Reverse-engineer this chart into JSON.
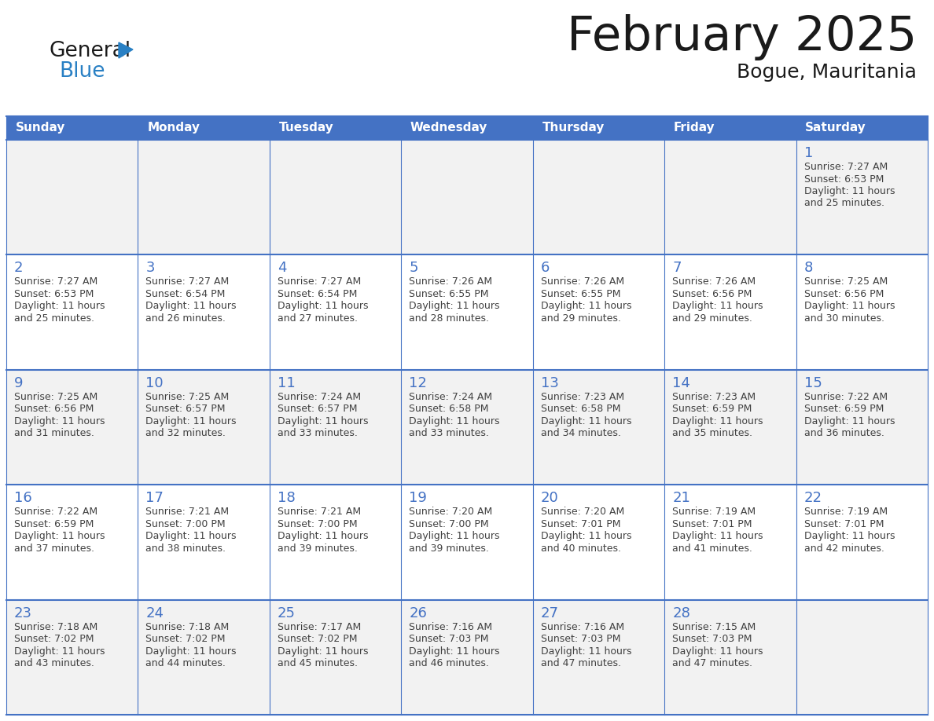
{
  "title": "February 2025",
  "subtitle": "Bogue, Mauritania",
  "days_of_week": [
    "Sunday",
    "Monday",
    "Tuesday",
    "Wednesday",
    "Thursday",
    "Friday",
    "Saturday"
  ],
  "header_bg": "#4472C4",
  "header_text": "#FFFFFF",
  "cell_bg_even": "#F2F2F2",
  "cell_bg_odd": "#FFFFFF",
  "grid_line_color": "#4472C4",
  "day_number_color": "#4472C4",
  "cell_text_color": "#404040",
  "title_color": "#1a1a1a",
  "logo_general_color": "#1a1a1a",
  "logo_blue_color": "#2980C4",
  "logo_triangle_color": "#2980C4",
  "calendar": [
    [
      null,
      null,
      null,
      null,
      null,
      null,
      {
        "day": 1,
        "sunrise": "7:27 AM",
        "sunset": "6:53 PM",
        "daylight": "11 hours and 25 minutes."
      }
    ],
    [
      {
        "day": 2,
        "sunrise": "7:27 AM",
        "sunset": "6:53 PM",
        "daylight": "11 hours and 25 minutes."
      },
      {
        "day": 3,
        "sunrise": "7:27 AM",
        "sunset": "6:54 PM",
        "daylight": "11 hours and 26 minutes."
      },
      {
        "day": 4,
        "sunrise": "7:27 AM",
        "sunset": "6:54 PM",
        "daylight": "11 hours and 27 minutes."
      },
      {
        "day": 5,
        "sunrise": "7:26 AM",
        "sunset": "6:55 PM",
        "daylight": "11 hours and 28 minutes."
      },
      {
        "day": 6,
        "sunrise": "7:26 AM",
        "sunset": "6:55 PM",
        "daylight": "11 hours and 29 minutes."
      },
      {
        "day": 7,
        "sunrise": "7:26 AM",
        "sunset": "6:56 PM",
        "daylight": "11 hours and 29 minutes."
      },
      {
        "day": 8,
        "sunrise": "7:25 AM",
        "sunset": "6:56 PM",
        "daylight": "11 hours and 30 minutes."
      }
    ],
    [
      {
        "day": 9,
        "sunrise": "7:25 AM",
        "sunset": "6:56 PM",
        "daylight": "11 hours and 31 minutes."
      },
      {
        "day": 10,
        "sunrise": "7:25 AM",
        "sunset": "6:57 PM",
        "daylight": "11 hours and 32 minutes."
      },
      {
        "day": 11,
        "sunrise": "7:24 AM",
        "sunset": "6:57 PM",
        "daylight": "11 hours and 33 minutes."
      },
      {
        "day": 12,
        "sunrise": "7:24 AM",
        "sunset": "6:58 PM",
        "daylight": "11 hours and 33 minutes."
      },
      {
        "day": 13,
        "sunrise": "7:23 AM",
        "sunset": "6:58 PM",
        "daylight": "11 hours and 34 minutes."
      },
      {
        "day": 14,
        "sunrise": "7:23 AM",
        "sunset": "6:59 PM",
        "daylight": "11 hours and 35 minutes."
      },
      {
        "day": 15,
        "sunrise": "7:22 AM",
        "sunset": "6:59 PM",
        "daylight": "11 hours and 36 minutes."
      }
    ],
    [
      {
        "day": 16,
        "sunrise": "7:22 AM",
        "sunset": "6:59 PM",
        "daylight": "11 hours and 37 minutes."
      },
      {
        "day": 17,
        "sunrise": "7:21 AM",
        "sunset": "7:00 PM",
        "daylight": "11 hours and 38 minutes."
      },
      {
        "day": 18,
        "sunrise": "7:21 AM",
        "sunset": "7:00 PM",
        "daylight": "11 hours and 39 minutes."
      },
      {
        "day": 19,
        "sunrise": "7:20 AM",
        "sunset": "7:00 PM",
        "daylight": "11 hours and 39 minutes."
      },
      {
        "day": 20,
        "sunrise": "7:20 AM",
        "sunset": "7:01 PM",
        "daylight": "11 hours and 40 minutes."
      },
      {
        "day": 21,
        "sunrise": "7:19 AM",
        "sunset": "7:01 PM",
        "daylight": "11 hours and 41 minutes."
      },
      {
        "day": 22,
        "sunrise": "7:19 AM",
        "sunset": "7:01 PM",
        "daylight": "11 hours and 42 minutes."
      }
    ],
    [
      {
        "day": 23,
        "sunrise": "7:18 AM",
        "sunset": "7:02 PM",
        "daylight": "11 hours and 43 minutes."
      },
      {
        "day": 24,
        "sunrise": "7:18 AM",
        "sunset": "7:02 PM",
        "daylight": "11 hours and 44 minutes."
      },
      {
        "day": 25,
        "sunrise": "7:17 AM",
        "sunset": "7:02 PM",
        "daylight": "11 hours and 45 minutes."
      },
      {
        "day": 26,
        "sunrise": "7:16 AM",
        "sunset": "7:03 PM",
        "daylight": "11 hours and 46 minutes."
      },
      {
        "day": 27,
        "sunrise": "7:16 AM",
        "sunset": "7:03 PM",
        "daylight": "11 hours and 47 minutes."
      },
      {
        "day": 28,
        "sunrise": "7:15 AM",
        "sunset": "7:03 PM",
        "daylight": "11 hours and 47 minutes."
      },
      null
    ]
  ]
}
